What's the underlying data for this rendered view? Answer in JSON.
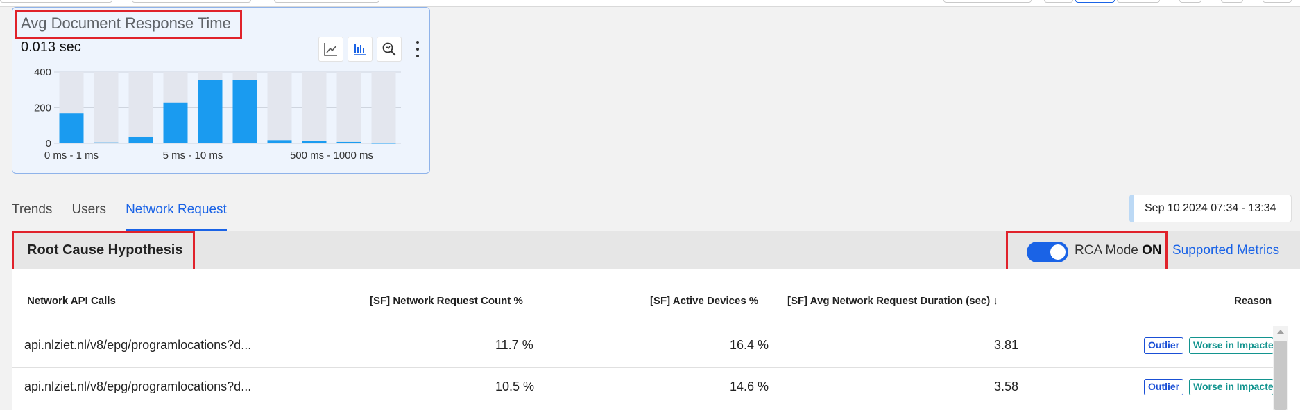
{
  "widget": {
    "title": "Avg Document Response Time",
    "value": "0.013 sec",
    "tools": [
      "line-chart-icon",
      "bar-chart-icon",
      "zoom-icon",
      "more-icon"
    ]
  },
  "chart_data": {
    "type": "bar",
    "categories": [
      "0 ms - 1 ms",
      "",
      "",
      "5 ms - 10 ms",
      "",
      "",
      "",
      "500 ms - 1000 ms",
      "",
      ""
    ],
    "values": [
      170,
      5,
      35,
      230,
      355,
      355,
      18,
      12,
      8,
      2
    ],
    "ylim": [
      0,
      400
    ],
    "yticks": [
      "0",
      "200",
      "400"
    ],
    "xtick_labels": [
      "0 ms - 1 ms",
      "5 ms - 10 ms",
      "500 ms - 1000 ms"
    ],
    "bar_color": "#1a9bf0",
    "background_bar_color": "#e3e6ee",
    "grid": true
  },
  "tabs": [
    {
      "label": "Trends",
      "active": false
    },
    {
      "label": "Users",
      "active": false
    },
    {
      "label": "Network Request",
      "active": true
    }
  ],
  "date_range": "Sep 10 2024 07:34 - 13:34",
  "rca": {
    "title": "Root Cause Hypothesis",
    "mode_label": "RCA Mode",
    "mode_state": "ON",
    "supported_link": "Supported Metrics"
  },
  "table": {
    "columns": [
      "Network API Calls",
      "[SF] Network Request Count %",
      "[SF] Active Devices %",
      "[SF] Avg Network Request Duration (sec) ↓",
      "Reason"
    ],
    "rows": [
      {
        "api": "api.nlziet.nl/v8/epg/programlocations?d...",
        "count_pct": "11.7 %",
        "devices_pct": "16.4 %",
        "duration": "3.81",
        "badges": [
          "Outlier",
          "Worse in Impacte"
        ]
      },
      {
        "api": "api.nlziet.nl/v8/epg/programlocations?d...",
        "count_pct": "10.5 %",
        "devices_pct": "14.6 %",
        "duration": "3.58",
        "badges": [
          "Outlier",
          "Worse in Impacte"
        ]
      }
    ]
  },
  "colors": {
    "accent": "#1a63e6",
    "highlight": "#e0222b",
    "outlier": "#1a4fd6",
    "worse": "#13948f"
  }
}
